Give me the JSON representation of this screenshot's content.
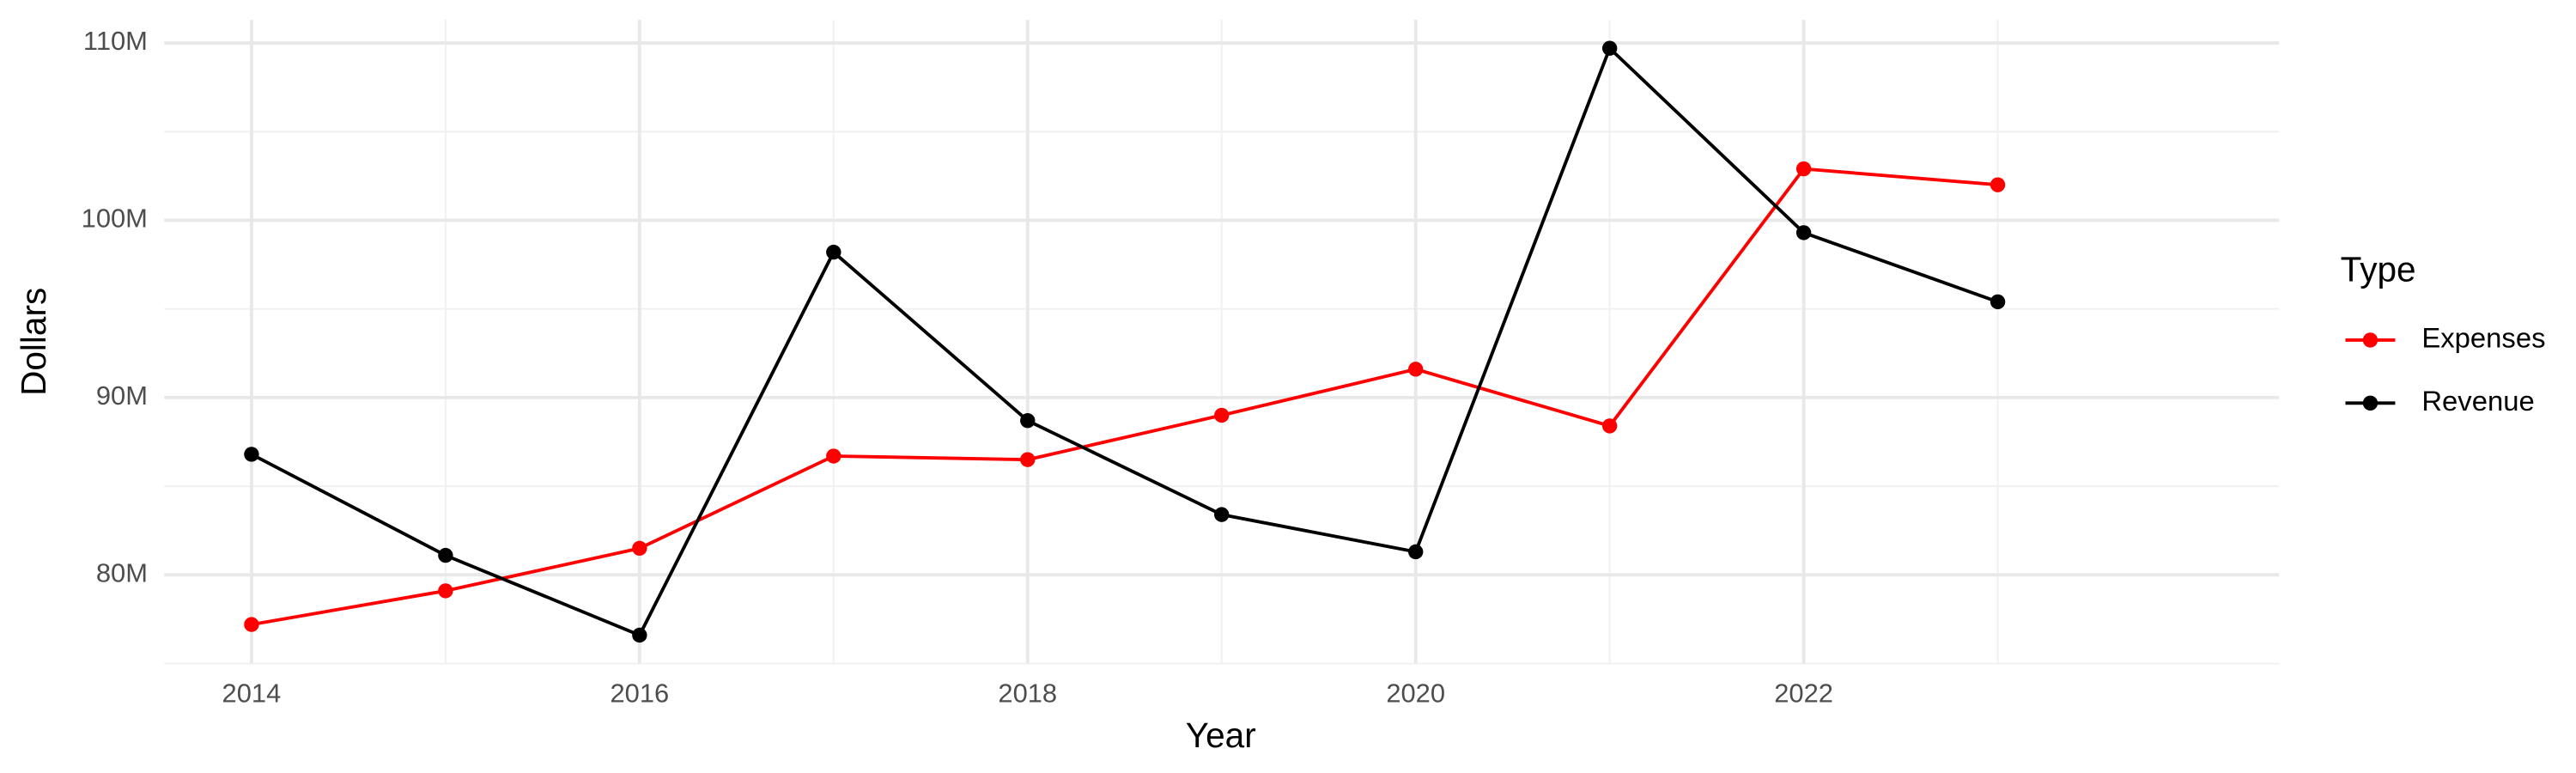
{
  "chart_data": {
    "type": "line",
    "x_label": "Year",
    "y_label": "Dollars",
    "legend_title": "Type",
    "x": [
      2014,
      2015,
      2016,
      2017,
      2018,
      2019,
      2020,
      2021,
      2022,
      2023
    ],
    "series": [
      {
        "name": "Expenses",
        "color": "#ff0000",
        "values": [
          77200000,
          79100000,
          81500000,
          86700000,
          86500000,
          89000000,
          91600000,
          88400000,
          102900000,
          102000000
        ]
      },
      {
        "name": "Revenue",
        "color": "#000000",
        "values": [
          86800000,
          81100000,
          76600000,
          98200000,
          88700000,
          83400000,
          81300000,
          109700000,
          99300000,
          95400000
        ]
      }
    ],
    "xlim": [
      2013.55,
      2024.45
    ],
    "xticks": [
      2014,
      2016,
      2018,
      2020,
      2022
    ],
    "ylim": [
      75000000,
      111300000
    ],
    "yticks": [
      {
        "value": 80000000,
        "label": "80M"
      },
      {
        "value": 90000000,
        "label": "90M"
      },
      {
        "value": 100000000,
        "label": "100M"
      },
      {
        "value": 110000000,
        "label": "110M"
      }
    ],
    "grid": true,
    "legend": "right"
  }
}
